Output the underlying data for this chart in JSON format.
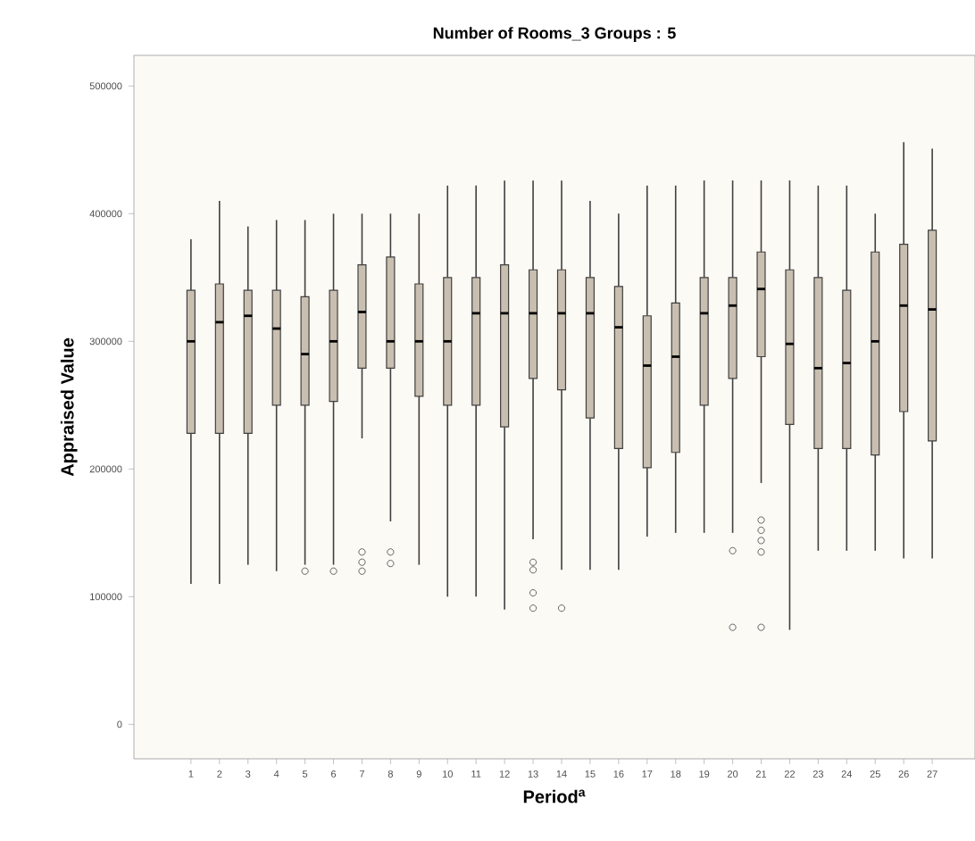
{
  "chart_data": {
    "type": "box",
    "title": "Number of Rooms_3 Groups : 5",
    "xlabel": "Period$^{a}$",
    "ylabel": "Appraised Value",
    "categories": [
      "1",
      "2",
      "3",
      "4",
      "5",
      "6",
      "7",
      "8",
      "9",
      "10",
      "11",
      "12",
      "13",
      "14",
      "15",
      "16",
      "17",
      "18",
      "19",
      "20",
      "21",
      "22",
      "23",
      "24",
      "25",
      "26",
      "27"
    ],
    "color": "#c9bfb1",
    "ylim": [
      -27000,
      524000
    ],
    "yticks": [
      0,
      100000,
      200000,
      300000,
      400000,
      500000
    ],
    "boxes": [
      {
        "low": 110000,
        "q1": 228000,
        "median": 300000,
        "q3": 340000,
        "high": 380000
      },
      {
        "low": 110000,
        "q1": 228000,
        "median": 315000,
        "q3": 345000,
        "high": 410000
      },
      {
        "low": 125000,
        "q1": 228000,
        "median": 320000,
        "q3": 340000,
        "high": 390000
      },
      {
        "low": 120000,
        "q1": 250000,
        "median": 310000,
        "q3": 340000,
        "high": 395000
      },
      {
        "low": 125000,
        "q1": 250000,
        "median": 290000,
        "q3": 335000,
        "high": 395000,
        "outliers": [
          120000
        ]
      },
      {
        "low": 125000,
        "q1": 253000,
        "median": 300000,
        "q3": 340000,
        "high": 400000,
        "outliers": [
          120000
        ]
      },
      {
        "low": 224000,
        "q1": 279000,
        "median": 323000,
        "q3": 360000,
        "high": 400000,
        "outliers": [
          120000,
          127000,
          135000
        ]
      },
      {
        "low": 159000,
        "q1": 279000,
        "median": 300000,
        "q3": 366000,
        "high": 400000,
        "outliers": [
          126000,
          135000
        ]
      },
      {
        "low": 125000,
        "q1": 257000,
        "median": 300000,
        "q3": 345000,
        "high": 400000
      },
      {
        "low": 100000,
        "q1": 250000,
        "median": 300000,
        "q3": 350000,
        "high": 422000
      },
      {
        "low": 100000,
        "q1": 250000,
        "median": 322000,
        "q3": 350000,
        "high": 422000
      },
      {
        "low": 90000,
        "q1": 233000,
        "median": 322000,
        "q3": 360000,
        "high": 426000
      },
      {
        "low": 145000,
        "q1": 271000,
        "median": 322000,
        "q3": 356000,
        "high": 426000,
        "outliers": [
          91000,
          103000,
          121000,
          127000
        ]
      },
      {
        "low": 121000,
        "q1": 262000,
        "median": 322000,
        "q3": 356000,
        "high": 426000,
        "outliers": [
          91000
        ]
      },
      {
        "low": 121000,
        "q1": 240000,
        "median": 322000,
        "q3": 350000,
        "high": 410000
      },
      {
        "low": 121000,
        "q1": 216000,
        "median": 311000,
        "q3": 343000,
        "high": 400000
      },
      {
        "low": 147000,
        "q1": 201000,
        "median": 281000,
        "q3": 320000,
        "high": 422000
      },
      {
        "low": 150000,
        "q1": 213000,
        "median": 288000,
        "q3": 330000,
        "high": 422000
      },
      {
        "low": 150000,
        "q1": 250000,
        "median": 322000,
        "q3": 350000,
        "high": 426000
      },
      {
        "low": 150000,
        "q1": 271000,
        "median": 328000,
        "q3": 350000,
        "high": 426000,
        "outliers": [
          76000,
          136000
        ]
      },
      {
        "low": 189000,
        "q1": 288000,
        "median": 341000,
        "q3": 370000,
        "high": 426000,
        "outliers": [
          76000,
          135000,
          144000,
          152000,
          160000
        ]
      },
      {
        "low": 74000,
        "q1": 235000,
        "median": 298000,
        "q3": 356000,
        "high": 426000
      },
      {
        "low": 136000,
        "q1": 216000,
        "median": 279000,
        "q3": 350000,
        "high": 422000
      },
      {
        "low": 136000,
        "q1": 216000,
        "median": 283000,
        "q3": 340000,
        "high": 422000
      },
      {
        "low": 136000,
        "q1": 211000,
        "median": 300000,
        "q3": 370000,
        "high": 400000
      },
      {
        "low": 130000,
        "q1": 245000,
        "median": 328000,
        "q3": 376000,
        "high": 456000
      },
      {
        "low": 130000,
        "q1": 222000,
        "median": 325000,
        "q3": 387000,
        "high": 451000
      }
    ]
  }
}
